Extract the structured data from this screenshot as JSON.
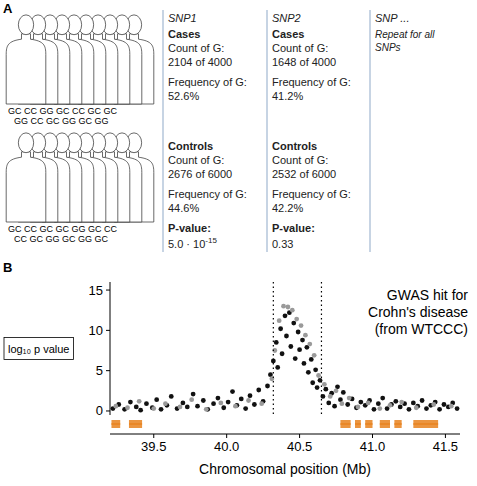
{
  "panel_a": {
    "label": "A",
    "cases_genotypes": [
      "GC CC GG GC CC GC GC",
      "GG CC GC GG GC GG"
    ],
    "controls_genotypes": [
      "GC CC GC GC GG GC CC",
      "CC GC GG GC GG GC"
    ],
    "columns": [
      {
        "snp": "SNP1",
        "cases_head": "Cases",
        "cases_count_label": "Count of G:",
        "cases_count": "2104 of 4000",
        "cases_freq_label": "Frequency of G:",
        "cases_freq": "52.6%",
        "controls_head": "Controls",
        "controls_count_label": "Count of G:",
        "controls_count": "2676 of 6000",
        "controls_freq_label": "Frequency of G:",
        "controls_freq": "44.6%",
        "p_label": "P-value:",
        "p_value": "5.0 · 10",
        "p_exponent": "-15"
      },
      {
        "snp": "SNP2",
        "cases_head": "Cases",
        "cases_count_label": "Count of G:",
        "cases_count": "1648 of 4000",
        "cases_freq_label": "Frequency of G:",
        "cases_freq": "41.2%",
        "controls_head": "Controls",
        "controls_count_label": "Count of G:",
        "controls_count": "2532 of 6000",
        "controls_freq_label": "Frequency of G:",
        "controls_freq": "42.2%",
        "p_label": "P-value:",
        "p_value": "0.33"
      }
    ],
    "more": {
      "snp": "SNP ...",
      "note": [
        "Repeat for all",
        "SNPs"
      ]
    }
  },
  "chart_data": {
    "label": "B",
    "type": "scatter",
    "y_label": "log₁₀ p value",
    "x_label": "Chromosomal position (Mb)",
    "annotation": [
      "GWAS hit for",
      "Crohn's disease",
      "(from WTCCC)"
    ],
    "xlim": [
      39.2,
      41.6
    ],
    "ylim": [
      -0.5,
      16
    ],
    "xticks": [
      39.5,
      {
        "value": 40,
        "label": "40.0"
      },
      40.5,
      {
        "value": 41,
        "label": "41.0"
      },
      41.5
    ],
    "yticks": [
      0,
      5,
      10,
      15
    ],
    "series": [
      {
        "color": "#111111",
        "marker": "circle",
        "x": [
          39.22,
          39.26,
          39.3,
          39.34,
          39.38,
          39.41,
          39.45,
          39.49,
          39.52,
          39.55,
          39.59,
          39.62,
          39.66,
          39.7,
          39.73,
          39.77,
          39.8,
          39.84,
          39.87,
          39.91,
          39.94,
          39.98,
          40.01,
          40.04,
          40.07,
          40.1,
          40.13,
          40.16,
          40.19,
          40.22,
          40.25,
          40.28,
          40.3,
          40.32,
          40.34,
          40.35,
          40.37,
          40.38,
          40.4,
          40.41,
          40.43,
          40.44,
          40.46,
          40.47,
          40.49,
          40.5,
          40.52,
          40.53,
          40.55,
          40.56,
          40.58,
          40.59,
          40.61,
          40.62,
          40.64,
          40.66,
          40.68,
          40.7,
          40.72,
          40.74,
          40.76,
          40.78,
          40.8,
          40.83,
          40.86,
          40.89,
          40.92,
          40.95,
          40.98,
          41.01,
          41.04,
          41.07,
          41.1,
          41.13,
          41.16,
          41.19,
          41.22,
          41.25,
          41.28,
          41.31,
          41.34,
          41.37,
          41.4,
          41.43,
          41.46,
          41.49,
          41.52,
          41.55,
          41.58
        ],
        "values": [
          0.3,
          0.8,
          0.2,
          1.1,
          0.5,
          0.1,
          0.9,
          0.4,
          1.4,
          0.2,
          0.7,
          1.8,
          0.3,
          1.0,
          0.5,
          2.1,
          0.6,
          1.3,
          0.2,
          0.9,
          1.6,
          0.4,
          1.1,
          2.4,
          0.7,
          1.5,
          0.3,
          1.9,
          0.8,
          2.6,
          1.2,
          3.1,
          4.5,
          6.2,
          8.5,
          5.4,
          10.2,
          7.1,
          11.8,
          9.3,
          12.2,
          8.0,
          10.9,
          6.5,
          9.8,
          7.6,
          8.8,
          5.9,
          7.9,
          4.8,
          6.4,
          3.5,
          5.1,
          2.9,
          3.8,
          1.8,
          2.7,
          1.0,
          2.2,
          0.6,
          3.0,
          1.4,
          2.3,
          0.8,
          1.5,
          0.4,
          1.1,
          0.7,
          1.3,
          0.2,
          0.9,
          1.6,
          0.3,
          0.8,
          1.2,
          0.5,
          0.9,
          0.2,
          1.0,
          0.6,
          1.3,
          0.3,
          0.7,
          1.1,
          0.2,
          0.8,
          0.5,
          1.0,
          0.3
        ]
      },
      {
        "color": "#9a9a9a",
        "marker": "circle",
        "x": [
          39.24,
          39.32,
          39.4,
          39.5,
          39.58,
          39.68,
          39.76,
          39.86,
          39.96,
          40.06,
          40.15,
          40.24,
          40.31,
          40.33,
          40.36,
          40.39,
          40.42,
          40.45,
          40.48,
          40.51,
          40.54,
          40.57,
          40.6,
          40.63,
          40.67,
          40.71,
          40.75,
          40.79,
          40.84,
          40.9,
          40.97,
          41.05,
          41.12,
          41.2,
          41.3,
          41.42,
          41.54
        ],
        "values": [
          0.6,
          0.4,
          1.2,
          0.3,
          0.9,
          0.5,
          1.4,
          0.2,
          1.0,
          0.6,
          1.3,
          0.9,
          4.0,
          7.5,
          11.2,
          13.0,
          12.9,
          12.5,
          11.4,
          10.6,
          9.4,
          8.3,
          6.9,
          4.4,
          3.3,
          1.8,
          2.5,
          0.9,
          1.6,
          0.5,
          1.0,
          0.3,
          0.7,
          1.1,
          0.4,
          0.8,
          0.6
        ]
      }
    ],
    "boundaries": [
      40.32,
      40.65
    ],
    "genes": {
      "color": "#e8821e",
      "starts": [
        39.21,
        39.33,
        40.78,
        40.88,
        40.95,
        41.05,
        41.15,
        41.28
      ],
      "ends": [
        39.27,
        39.42,
        40.85,
        40.92,
        41.0,
        41.12,
        41.2,
        41.45
      ]
    }
  }
}
